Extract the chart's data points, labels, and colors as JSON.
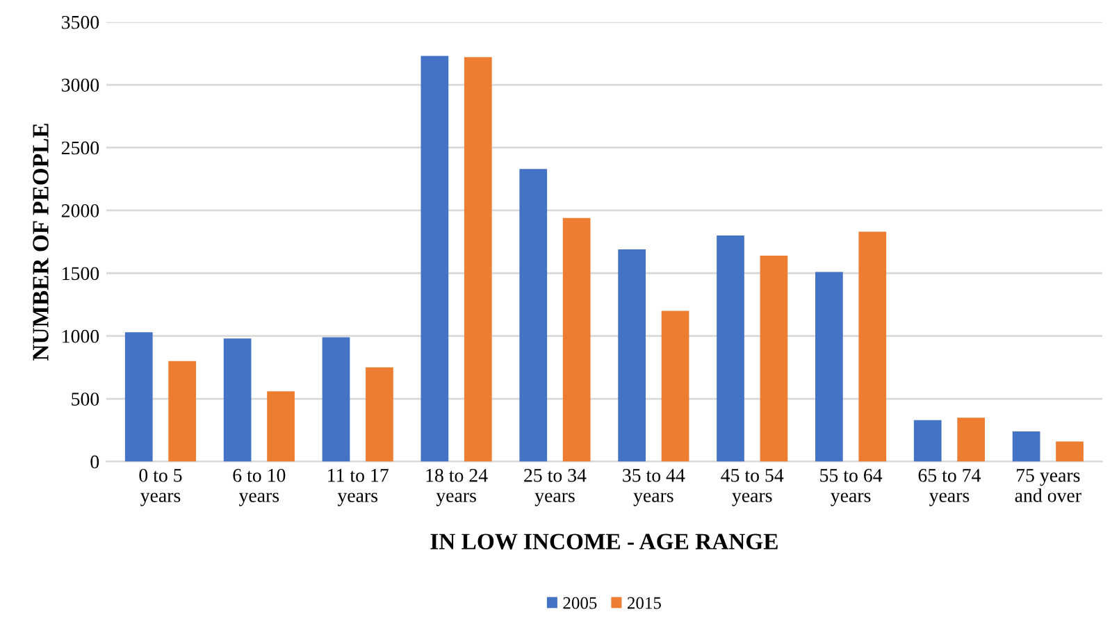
{
  "chart_data": {
    "type": "bar",
    "categories": [
      "0 to 5\nyears",
      "6 to 10\nyears",
      "11 to 17\nyears",
      "18 to 24\nyears",
      "25 to 34\nyears",
      "35 to 44\nyears",
      "45 to 54\nyears",
      "55 to 64\nyears",
      "65 to 74\nyears",
      "75 years\nand over"
    ],
    "series": [
      {
        "name": "2005",
        "color": "#4472c4",
        "values": [
          1030,
          980,
          990,
          3230,
          2330,
          1690,
          1800,
          1510,
          330,
          240
        ]
      },
      {
        "name": "2015",
        "color": "#ed7d31",
        "values": [
          800,
          560,
          750,
          3220,
          1940,
          1200,
          1640,
          1830,
          350,
          160
        ]
      }
    ],
    "xlabel": "IN LOW INCOME - AGE RANGE",
    "ylabel": "NUMBER OF PEOPLE",
    "ylim": [
      0,
      3500
    ],
    "yticks": [
      0,
      500,
      1000,
      1500,
      2000,
      2500,
      3000,
      3500
    ],
    "grid": "y",
    "legend": "bottom"
  }
}
